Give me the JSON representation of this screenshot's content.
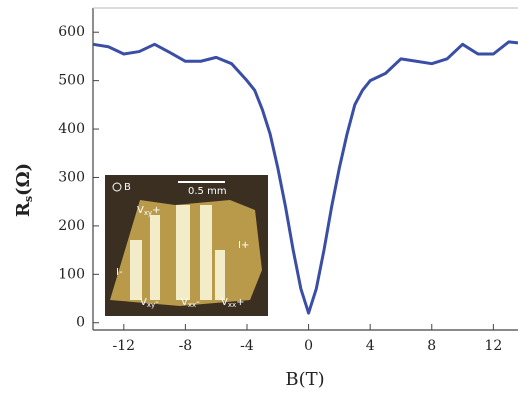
{
  "chart_data": {
    "type": "line",
    "xlabel": "B(T)",
    "ylabel": [
      "R",
      "s",
      "(Ω)"
    ],
    "x": [
      -14,
      -13,
      -12,
      -11,
      -10,
      -9,
      -8,
      -7,
      -6,
      -5,
      -4,
      -3.5,
      -3,
      -2.5,
      -2,
      -1.5,
      -1,
      -0.5,
      0,
      0.5,
      1,
      1.5,
      2,
      2.5,
      3,
      3.5,
      4,
      5,
      6,
      7,
      8,
      9,
      10,
      11,
      12,
      13,
      13.6
    ],
    "series": [
      {
        "color": "#3a4ea6",
        "values": [
          575,
          570,
          555,
          560,
          575,
          558,
          540,
          540,
          548,
          535,
          500,
          480,
          440,
          390,
          320,
          240,
          150,
          70,
          20,
          70,
          150,
          240,
          320,
          390,
          450,
          480,
          500,
          515,
          545,
          540,
          535,
          545,
          575,
          555,
          555,
          580,
          578
        ]
      }
    ],
    "xlim": [
      -14,
      13.6
    ],
    "ylim": [
      -15,
      650
    ],
    "xticks": [
      -12,
      -8,
      -4,
      0,
      4,
      8,
      12
    ],
    "yticks": [
      0,
      100,
      200,
      300,
      400,
      500,
      600
    ],
    "inset": {
      "field": "B",
      "scale": "0.5 mm",
      "labels": [
        [
          "V",
          "xy",
          "+"
        ],
        [
          "I+",
          "",
          ""
        ],
        [
          "I-",
          "",
          ""
        ],
        [
          "V",
          "xy",
          "-"
        ],
        [
          "V",
          "xx",
          "-"
        ],
        [
          "V",
          "xx",
          "+"
        ]
      ]
    }
  }
}
